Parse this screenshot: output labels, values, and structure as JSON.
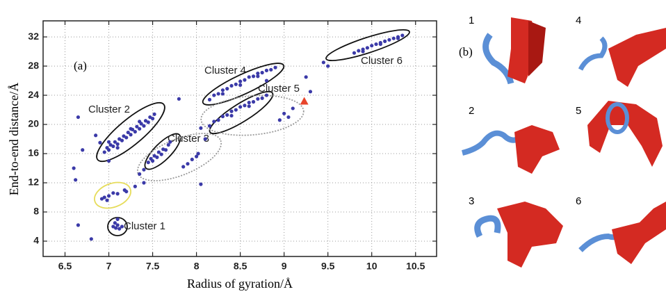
{
  "chart_data": {
    "type": "scatter",
    "panel_labels": [
      "(a)",
      "(b)"
    ],
    "xlabel": "Radius of gyration/Å",
    "ylabel": "End-to-end distance/Å",
    "xlim": [
      6.25,
      10.74
    ],
    "ylim": [
      1.9,
      34.2
    ],
    "xticks": [
      6.5,
      7,
      7.5,
      8,
      8.5,
      9,
      9.5,
      10,
      10.5
    ],
    "yticks": [
      4,
      8,
      12,
      16,
      20,
      24,
      28,
      32
    ],
    "grid": true,
    "color": "#3b3aa8",
    "x": [
      7.05,
      7.08,
      7.1,
      7.12,
      7.07,
      7.15,
      7.1,
      6.92,
      6.95,
      7.0,
      7.05,
      7.1,
      7.18,
      7.2,
      6.98,
      6.8,
      6.65,
      6.62,
      6.6,
      6.7,
      6.9,
      6.85,
      6.65,
      7.4,
      7.3,
      8.05,
      8.1,
      8.05,
      7.8,
      9.3,
      9.45,
      9.5,
      9.25,
      7.0,
      8.8,
      6.95,
      6.98,
      7.0,
      7.02,
      7.05,
      7.07,
      7.1,
      7.12,
      7.15,
      7.17,
      7.2,
      7.22,
      7.25,
      7.27,
      7.3,
      7.32,
      7.35,
      7.37,
      7.4,
      7.42,
      7.45,
      7.47,
      7.5,
      7.52,
      7.1,
      7.25,
      7.35,
      7.0,
      7.45,
      7.48,
      7.5,
      7.52,
      7.55,
      7.57,
      7.6,
      7.62,
      7.65,
      7.68,
      7.7,
      7.4,
      7.35,
      7.9,
      7.95,
      8.0,
      7.85,
      8.02,
      8.15,
      8.2,
      8.25,
      8.3,
      8.35,
      8.4,
      8.45,
      8.5,
      8.55,
      8.6,
      8.65,
      8.7,
      8.75,
      8.8,
      8.85,
      8.9,
      8.3,
      8.5,
      8.7,
      8.15,
      8.2,
      8.25,
      8.3,
      8.35,
      8.4,
      8.45,
      8.5,
      8.55,
      8.6,
      8.65,
      8.7,
      8.75,
      8.8,
      8.4,
      8.6,
      9.0,
      9.05,
      9.1,
      8.95,
      9.8,
      9.85,
      9.9,
      9.95,
      10.0,
      10.05,
      10.1,
      10.15,
      10.2,
      10.25,
      10.3,
      10.35,
      9.9,
      10.1,
      10.3
    ],
    "values": [
      6.0,
      5.8,
      6.2,
      5.7,
      6.5,
      6.0,
      7.0,
      9.8,
      10.0,
      10.2,
      10.6,
      10.5,
      11.0,
      10.8,
      9.6,
      4.3,
      6.2,
      12.4,
      14.0,
      16.5,
      17.5,
      18.5,
      21.0,
      12.0,
      11.5,
      11.8,
      18.0,
      19.5,
      23.5,
      24.5,
      28.5,
      28.0,
      26.5,
      15.0,
      26.0,
      16.2,
      16.8,
      16.5,
      17.2,
      17.0,
      17.6,
      17.3,
      18.0,
      17.8,
      18.4,
      18.2,
      18.9,
      18.6,
      19.3,
      19.0,
      19.7,
      19.4,
      20.1,
      19.8,
      20.5,
      20.3,
      21.0,
      20.8,
      21.4,
      16.8,
      19.4,
      20.4,
      17.6,
      14.8,
      15.3,
      15.0,
      15.7,
      15.5,
      16.2,
      15.9,
      16.6,
      16.5,
      17.2,
      17.6,
      13.8,
      13.2,
      14.6,
      15.2,
      15.6,
      14.2,
      16.0,
      23.4,
      24.0,
      24.2,
      24.7,
      24.9,
      25.3,
      25.5,
      25.9,
      26.1,
      26.5,
      26.6,
      27.0,
      27.1,
      27.4,
      27.5,
      27.8,
      24.2,
      25.4,
      26.6,
      19.8,
      20.4,
      20.6,
      21.1,
      21.3,
      21.8,
      22.0,
      22.4,
      22.6,
      23.0,
      23.1,
      23.5,
      23.6,
      24.0,
      21.2,
      22.5,
      21.5,
      21.0,
      22.2,
      20.6,
      29.8,
      30.1,
      30.3,
      30.5,
      30.8,
      31.0,
      31.2,
      31.4,
      31.6,
      31.8,
      32.0,
      32.2,
      30.0,
      31.0,
      31.8
    ],
    "highlight": {
      "x": 9.23,
      "value": 23.2,
      "color": "#e8452c"
    },
    "cluster_labels": [
      "Cluster 1",
      "Cluster 2",
      "Cluster 3",
      "Cluster 4",
      "Cluster 5",
      "Cluster 6"
    ],
    "structure_labels": [
      "1",
      "4",
      "2",
      "5",
      "3",
      "6"
    ]
  }
}
